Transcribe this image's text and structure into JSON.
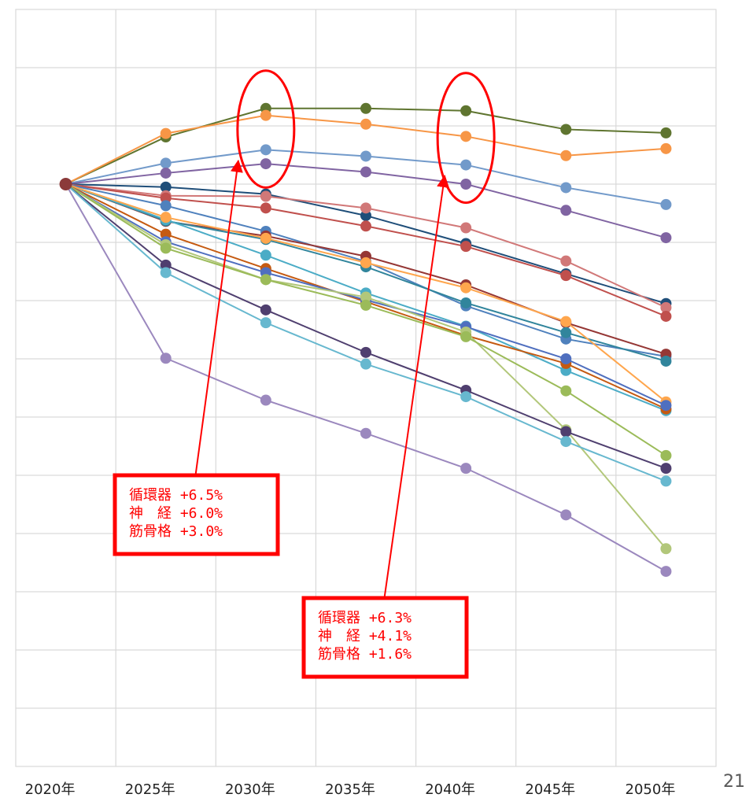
{
  "page_number": "21",
  "chart_data": {
    "type": "line",
    "title": "",
    "xlabel": "",
    "ylabel": "",
    "categories": [
      "2020年",
      "2025年",
      "2030年",
      "2035年",
      "2040年",
      "2045年",
      "2050年"
    ],
    "ylim": [
      0,
      1.3
    ],
    "y_gridlines": 13,
    "grid": true,
    "legend": "none",
    "series": [
      {
        "color": "#5f7530",
        "values": [
          1.0,
          1.081,
          1.13,
          1.13,
          1.126,
          1.094,
          1.088
        ]
      },
      {
        "color": "#f79646",
        "values": [
          1.0,
          1.087,
          1.118,
          1.103,
          1.082,
          1.049,
          1.061
        ]
      },
      {
        "color": "#729aca",
        "values": [
          1.0,
          1.036,
          1.059,
          1.048,
          1.033,
          0.994,
          0.965
        ]
      },
      {
        "color": "#8064a2",
        "values": [
          1.0,
          1.019,
          1.035,
          1.021,
          1.0,
          0.955,
          0.908
        ]
      },
      {
        "color": "#1f4e79",
        "values": [
          1.0,
          0.995,
          0.983,
          0.946,
          0.898,
          0.846,
          0.795
        ]
      },
      {
        "color": "#d17878",
        "values": [
          1.0,
          0.98,
          0.979,
          0.959,
          0.925,
          0.868,
          0.788
        ]
      },
      {
        "color": "#c0504d",
        "values": [
          1.0,
          0.976,
          0.959,
          0.928,
          0.893,
          0.843,
          0.773
        ]
      },
      {
        "color": "#4f81bd",
        "values": [
          1.0,
          0.963,
          0.919,
          0.867,
          0.791,
          0.734,
          0.704
        ]
      },
      {
        "color": "#953735",
        "values": [
          1.0,
          0.936,
          0.911,
          0.876,
          0.827,
          0.762,
          0.708
        ]
      },
      {
        "color": "#31859c",
        "values": [
          1.0,
          0.937,
          0.905,
          0.858,
          0.796,
          0.745,
          0.696
        ]
      },
      {
        "color": "#4bacc6",
        "values": [
          1.0,
          0.939,
          0.878,
          0.813,
          0.756,
          0.68,
          0.611
        ]
      },
      {
        "color": "#ffa64d",
        "values": [
          1.0,
          0.943,
          0.907,
          0.865,
          0.822,
          0.764,
          0.626
        ]
      },
      {
        "color": "#c55a11",
        "values": [
          1.0,
          0.914,
          0.855,
          0.798,
          0.74,
          0.692,
          0.614
        ]
      },
      {
        "color": "#4f6fbf",
        "values": [
          1.0,
          0.901,
          0.848,
          0.801,
          0.755,
          0.7,
          0.62
        ]
      },
      {
        "color": "#b2c77a",
        "values": [
          1.0,
          0.896,
          0.836,
          0.806,
          0.746,
          0.578,
          0.374
        ]
      },
      {
        "color": "#9bbb59",
        "values": [
          1.0,
          0.89,
          0.836,
          0.792,
          0.738,
          0.645,
          0.534
        ]
      },
      {
        "color": "#4f3f6f",
        "values": [
          1.0,
          0.861,
          0.784,
          0.711,
          0.646,
          0.575,
          0.512
        ]
      },
      {
        "color": "#67b8cf",
        "values": [
          1.0,
          0.848,
          0.762,
          0.691,
          0.635,
          0.558,
          0.49
        ]
      },
      {
        "color": "#9b88be",
        "values": [
          1.0,
          0.701,
          0.629,
          0.572,
          0.512,
          0.432,
          0.335
        ]
      }
    ],
    "annotations": [
      {
        "year": "2030年",
        "lines": [
          "循環器 +6.5%",
          "神　経 +6.0%",
          "筋骨格 +3.0%"
        ]
      },
      {
        "year": "2040年",
        "lines": [
          "循環器 +6.3%",
          "神　経 +4.1%",
          "筋骨格 +1.6%"
        ]
      }
    ]
  }
}
